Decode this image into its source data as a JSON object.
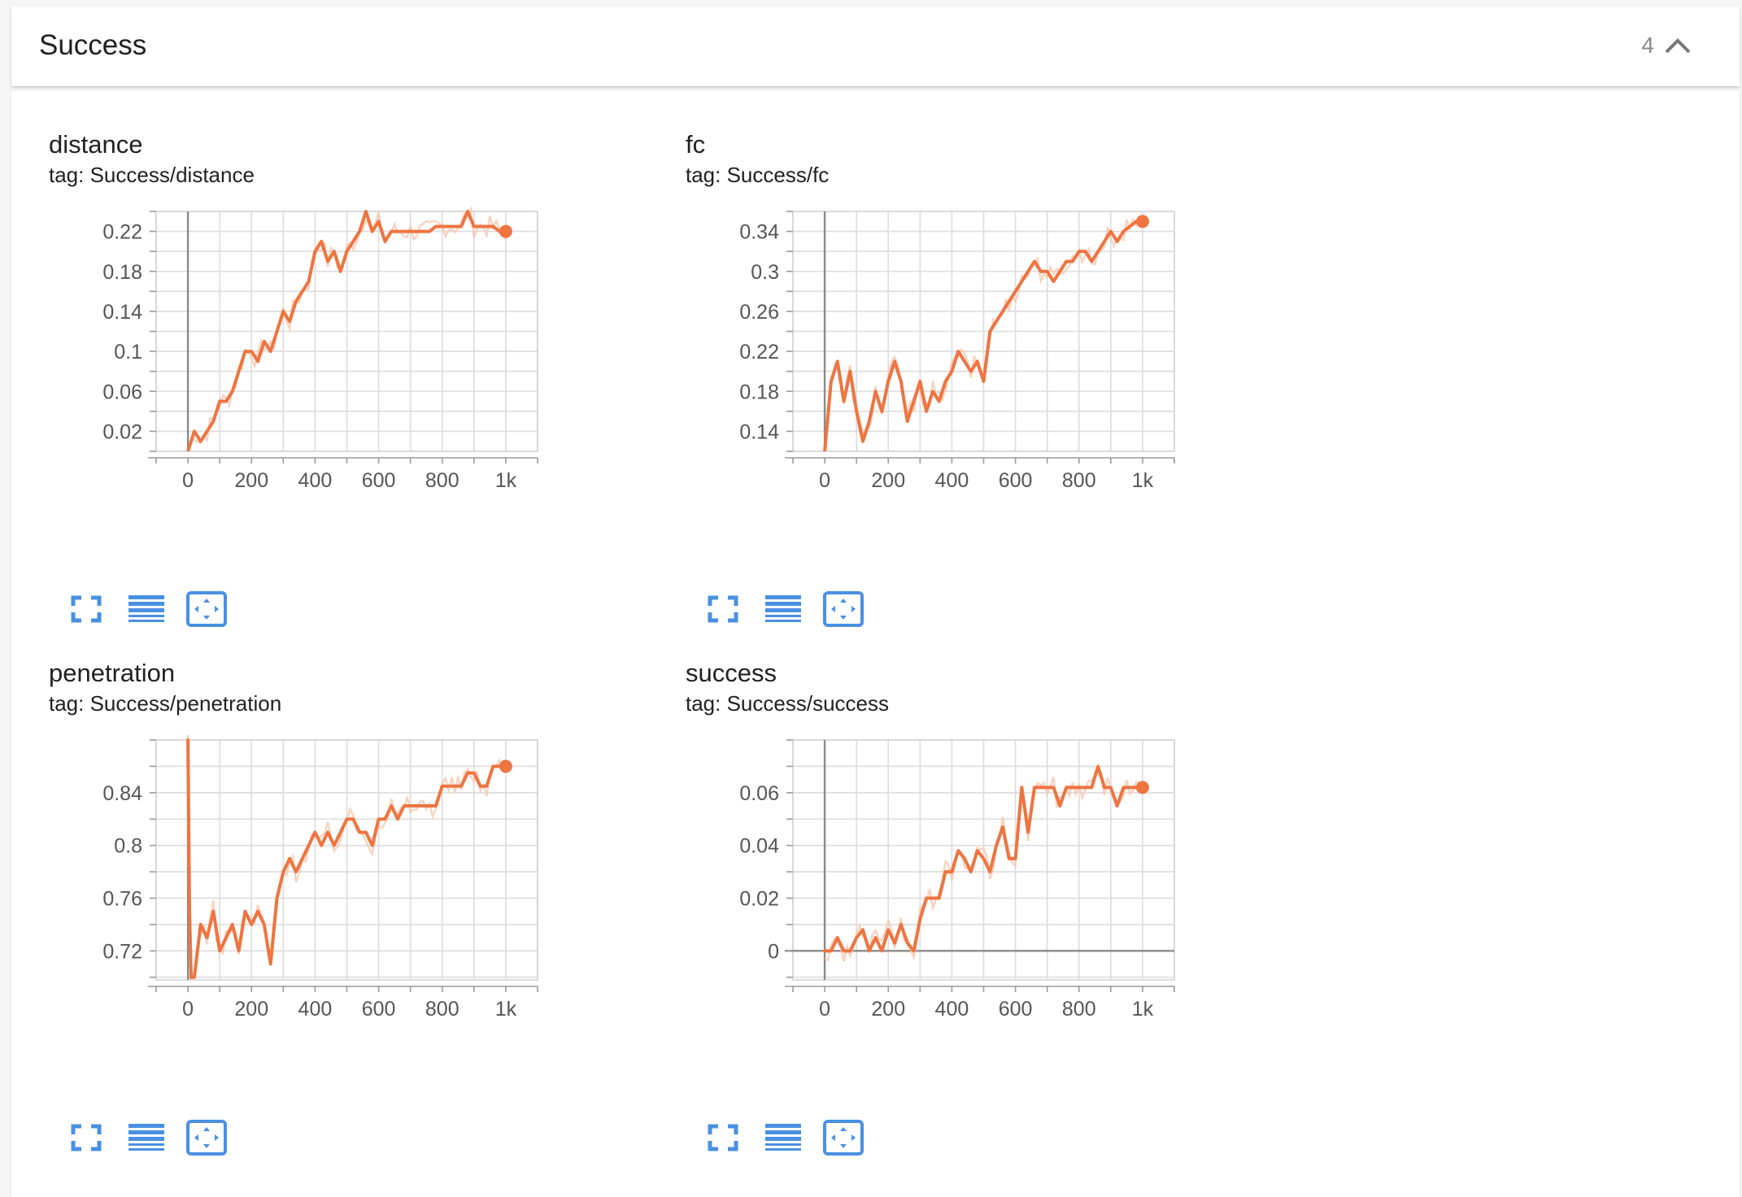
{
  "header": {
    "title": "Success",
    "count": "4"
  },
  "colors": {
    "accent": "#ee7440",
    "raw": "#f6c5ad",
    "icon": "#4a90e2"
  },
  "cards": [
    {
      "title": "distance",
      "tag": "tag: Success/distance"
    },
    {
      "title": "fc",
      "tag": "tag: Success/fc"
    },
    {
      "title": "penetration",
      "tag": "tag: Success/penetration"
    },
    {
      "title": "success",
      "tag": "tag: Success/success"
    }
  ],
  "icons": [
    "fullscreen-icon",
    "data-selection-icon",
    "fit-domain-icon"
  ],
  "chart_data": [
    {
      "type": "line",
      "title": "distance",
      "xlim": [
        -100,
        1100
      ],
      "ylim": [
        0.0,
        0.24
      ],
      "xticks": [
        0,
        200,
        400,
        600,
        800,
        1000
      ],
      "xtick_labels": [
        "0",
        "200",
        "400",
        "600",
        "800",
        "1k"
      ],
      "yticks": [
        0.02,
        0.06,
        0.1,
        0.14,
        0.18,
        0.22
      ],
      "ytick_labels": [
        "0.02",
        "0.06",
        "0.1",
        "0.14",
        "0.18",
        "0.22"
      ],
      "x": [
        0,
        20,
        40,
        60,
        80,
        100,
        120,
        140,
        160,
        180,
        200,
        220,
        240,
        260,
        280,
        300,
        320,
        340,
        360,
        380,
        400,
        420,
        440,
        460,
        480,
        500,
        520,
        540,
        560,
        580,
        600,
        620,
        640,
        660,
        680,
        700,
        720,
        740,
        760,
        780,
        800,
        820,
        840,
        860,
        880,
        900,
        920,
        940,
        960,
        980,
        1000
      ],
      "y": [
        0.0,
        0.02,
        0.01,
        0.02,
        0.03,
        0.05,
        0.05,
        0.06,
        0.08,
        0.1,
        0.1,
        0.09,
        0.11,
        0.1,
        0.12,
        0.14,
        0.13,
        0.15,
        0.16,
        0.17,
        0.2,
        0.21,
        0.19,
        0.2,
        0.18,
        0.2,
        0.21,
        0.22,
        0.24,
        0.22,
        0.23,
        0.21,
        0.22,
        0.22,
        0.22,
        0.22,
        0.22,
        0.22,
        0.22,
        0.225,
        0.225,
        0.225,
        0.225,
        0.225,
        0.24,
        0.225,
        0.225,
        0.225,
        0.225,
        0.22,
        0.22
      ],
      "axis_lines": [
        "x=0"
      ]
    },
    {
      "type": "line",
      "title": "fc",
      "xlim": [
        -100,
        1100
      ],
      "ylim": [
        0.12,
        0.36
      ],
      "xticks": [
        0,
        200,
        400,
        600,
        800,
        1000
      ],
      "xtick_labels": [
        "0",
        "200",
        "400",
        "600",
        "800",
        "1k"
      ],
      "yticks": [
        0.14,
        0.18,
        0.22,
        0.26,
        0.3,
        0.34
      ],
      "ytick_labels": [
        "0.14",
        "0.18",
        "0.22",
        "0.26",
        "0.3",
        "0.34"
      ],
      "x": [
        0,
        20,
        40,
        60,
        80,
        100,
        120,
        140,
        160,
        180,
        200,
        220,
        240,
        260,
        280,
        300,
        320,
        340,
        360,
        380,
        400,
        420,
        440,
        460,
        480,
        500,
        520,
        540,
        560,
        580,
        600,
        620,
        640,
        660,
        680,
        700,
        720,
        740,
        760,
        780,
        800,
        820,
        840,
        860,
        880,
        900,
        920,
        940,
        960,
        980,
        1000
      ],
      "y": [
        0.12,
        0.19,
        0.21,
        0.17,
        0.2,
        0.16,
        0.13,
        0.15,
        0.18,
        0.16,
        0.19,
        0.21,
        0.19,
        0.15,
        0.17,
        0.19,
        0.16,
        0.18,
        0.17,
        0.19,
        0.2,
        0.22,
        0.21,
        0.2,
        0.21,
        0.19,
        0.24,
        0.25,
        0.26,
        0.27,
        0.28,
        0.29,
        0.3,
        0.31,
        0.3,
        0.3,
        0.29,
        0.3,
        0.31,
        0.31,
        0.32,
        0.32,
        0.31,
        0.32,
        0.33,
        0.34,
        0.33,
        0.34,
        0.345,
        0.35,
        0.35
      ],
      "axis_lines": [
        "x=0"
      ]
    },
    {
      "type": "line",
      "title": "penetration",
      "xlim": [
        -100,
        1100
      ],
      "ylim": [
        0.698,
        0.88
      ],
      "xticks": [
        0,
        200,
        400,
        600,
        800,
        1000
      ],
      "xtick_labels": [
        "0",
        "200",
        "400",
        "600",
        "800",
        "1k"
      ],
      "yticks": [
        0.72,
        0.76,
        0.8,
        0.84
      ],
      "ytick_labels": [
        "0.72",
        "0.76",
        "0.8",
        "0.84"
      ],
      "x": [
        0,
        5,
        10,
        20,
        40,
        60,
        80,
        100,
        120,
        140,
        160,
        180,
        200,
        220,
        240,
        260,
        280,
        300,
        320,
        340,
        360,
        380,
        400,
        420,
        440,
        460,
        480,
        500,
        520,
        540,
        560,
        580,
        600,
        620,
        640,
        660,
        680,
        700,
        720,
        740,
        760,
        780,
        800,
        820,
        840,
        860,
        880,
        900,
        920,
        940,
        960,
        980,
        1000
      ],
      "y": [
        0.88,
        0.75,
        0.7,
        0.7,
        0.74,
        0.73,
        0.75,
        0.72,
        0.73,
        0.74,
        0.72,
        0.75,
        0.74,
        0.75,
        0.74,
        0.71,
        0.76,
        0.78,
        0.79,
        0.78,
        0.79,
        0.8,
        0.81,
        0.8,
        0.81,
        0.8,
        0.81,
        0.82,
        0.82,
        0.81,
        0.81,
        0.8,
        0.82,
        0.82,
        0.83,
        0.82,
        0.83,
        0.83,
        0.83,
        0.83,
        0.83,
        0.83,
        0.845,
        0.845,
        0.845,
        0.845,
        0.855,
        0.855,
        0.845,
        0.845,
        0.86,
        0.86,
        0.86
      ],
      "axis_lines": [
        "x=0"
      ]
    },
    {
      "type": "line",
      "title": "success",
      "xlim": [
        -100,
        1100
      ],
      "ylim": [
        -0.011,
        0.08
      ],
      "xticks": [
        0,
        200,
        400,
        600,
        800,
        1000
      ],
      "xtick_labels": [
        "0",
        "200",
        "400",
        "600",
        "800",
        "1k"
      ],
      "yticks": [
        0,
        0.02,
        0.04,
        0.06
      ],
      "ytick_labels": [
        "0",
        "0.02",
        "0.04",
        "0.06"
      ],
      "x": [
        0,
        20,
        40,
        60,
        80,
        100,
        120,
        140,
        160,
        180,
        200,
        220,
        240,
        260,
        280,
        300,
        320,
        340,
        360,
        380,
        400,
        420,
        440,
        460,
        480,
        500,
        520,
        540,
        560,
        580,
        600,
        620,
        640,
        660,
        680,
        700,
        720,
        740,
        760,
        780,
        800,
        820,
        840,
        860,
        880,
        900,
        920,
        940,
        960,
        980,
        1000
      ],
      "y": [
        0.0,
        0.0,
        0.005,
        0.0,
        0.0,
        0.005,
        0.008,
        0.0,
        0.005,
        0.0,
        0.008,
        0.003,
        0.01,
        0.003,
        0.0,
        0.012,
        0.02,
        0.02,
        0.02,
        0.03,
        0.03,
        0.038,
        0.035,
        0.03,
        0.038,
        0.035,
        0.03,
        0.04,
        0.047,
        0.035,
        0.035,
        0.062,
        0.045,
        0.062,
        0.062,
        0.062,
        0.062,
        0.055,
        0.062,
        0.062,
        0.062,
        0.062,
        0.062,
        0.07,
        0.062,
        0.062,
        0.055,
        0.062,
        0.062,
        0.062,
        0.062
      ],
      "axis_lines": [
        "x=0",
        "y=0"
      ]
    }
  ]
}
